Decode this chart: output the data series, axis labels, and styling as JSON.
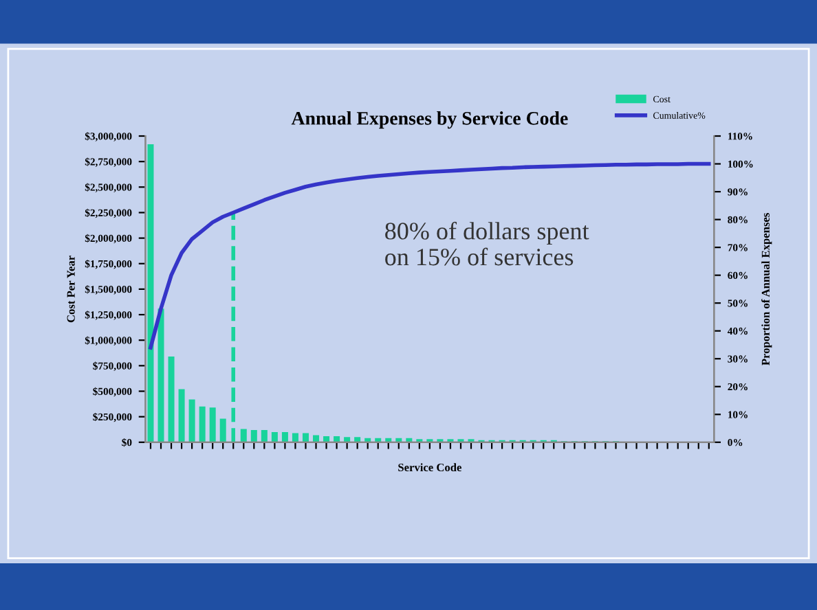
{
  "chart_data": {
    "type": "bar",
    "title": "Annual Expenses by Service Code",
    "xlabel": "Service Code",
    "ylabel": "Cost Per Year",
    "y2label": "Proportion of Annual Expenses",
    "categories": [
      null,
      null,
      null,
      null,
      null,
      null,
      null,
      null,
      null,
      null,
      null,
      null,
      null,
      null,
      null,
      null,
      null,
      null,
      null,
      null,
      null,
      null,
      null,
      null,
      null,
      null,
      null,
      null,
      null,
      null,
      null,
      null,
      null,
      null,
      null,
      null,
      null,
      null,
      null,
      null,
      null,
      null,
      null,
      null,
      null,
      null,
      null,
      null,
      null,
      null,
      null,
      null,
      null,
      null,
      null
    ],
    "series": [
      {
        "name": "Cost",
        "color": "#19d39b",
        "values": [
          2920000,
          1310000,
          840000,
          520000,
          420000,
          350000,
          340000,
          230000,
          null,
          130000,
          120000,
          120000,
          100000,
          100000,
          90000,
          90000,
          70000,
          60000,
          60000,
          50000,
          50000,
          40000,
          40000,
          40000,
          40000,
          40000,
          30000,
          30000,
          30000,
          30000,
          30000,
          30000,
          20000,
          20000,
          20000,
          20000,
          20000,
          20000,
          20000,
          20000,
          10000,
          10000,
          10000,
          10000,
          10000,
          10000,
          0,
          0,
          0,
          0,
          0,
          0,
          0,
          0,
          0
        ]
      },
      {
        "name": "Cumulative%",
        "type": "line",
        "axis": "y2",
        "color": "#3535c8",
        "values": [
          34,
          48,
          60,
          68,
          73,
          76,
          79,
          81,
          82.5,
          84,
          85.5,
          87,
          88.3,
          89.6,
          90.7,
          91.8,
          92.6,
          93.3,
          93.9,
          94.4,
          94.9,
          95.3,
          95.7,
          96.0,
          96.3,
          96.6,
          96.9,
          97.1,
          97.3,
          97.5,
          97.7,
          97.9,
          98.1,
          98.3,
          98.5,
          98.6,
          98.8,
          98.9,
          99.0,
          99.1,
          99.2,
          99.3,
          99.4,
          99.5,
          99.6,
          99.7,
          99.7,
          99.8,
          99.8,
          99.9,
          99.9,
          99.9,
          100,
          100,
          100
        ]
      }
    ],
    "ylim": [
      0,
      3000000
    ],
    "yticks": [
      {
        "value": 0,
        "label": "$0"
      },
      {
        "value": 250000,
        "label": "$250,000"
      },
      {
        "value": 500000,
        "label": "$500,000"
      },
      {
        "value": 750000,
        "label": "$750,000"
      },
      {
        "value": 1000000,
        "label": "$1,000,000"
      },
      {
        "value": 1250000,
        "label": "$1,250,000"
      },
      {
        "value": 1500000,
        "label": "$1,500,000"
      },
      {
        "value": 1750000,
        "label": "$1,750,000"
      },
      {
        "value": 2000000,
        "label": "$2,000,000"
      },
      {
        "value": 2250000,
        "label": "$2,250,000"
      },
      {
        "value": 2500000,
        "label": "$2,500,000"
      },
      {
        "value": 2750000,
        "label": "$2,750,000"
      },
      {
        "value": 3000000,
        "label": "$3,000,000"
      }
    ],
    "y2lim": [
      0,
      110
    ],
    "y2ticks": [
      {
        "value": 0,
        "label": "0%"
      },
      {
        "value": 10,
        "label": "10%"
      },
      {
        "value": 20,
        "label": "20%"
      },
      {
        "value": 30,
        "label": "30%"
      },
      {
        "value": 40,
        "label": "40%"
      },
      {
        "value": 50,
        "label": "50%"
      },
      {
        "value": 60,
        "label": "60%"
      },
      {
        "value": 70,
        "label": "70%"
      },
      {
        "value": 80,
        "label": "80%"
      },
      {
        "value": 90,
        "label": "90%"
      },
      {
        "value": 100,
        "label": "100%"
      },
      {
        "value": 110,
        "label": "110%"
      }
    ],
    "annotations": [
      "80% of dollars spent\non 15% of services"
    ],
    "legend": "top right",
    "grid": false,
    "marker": "none",
    "line_style": "solid"
  }
}
